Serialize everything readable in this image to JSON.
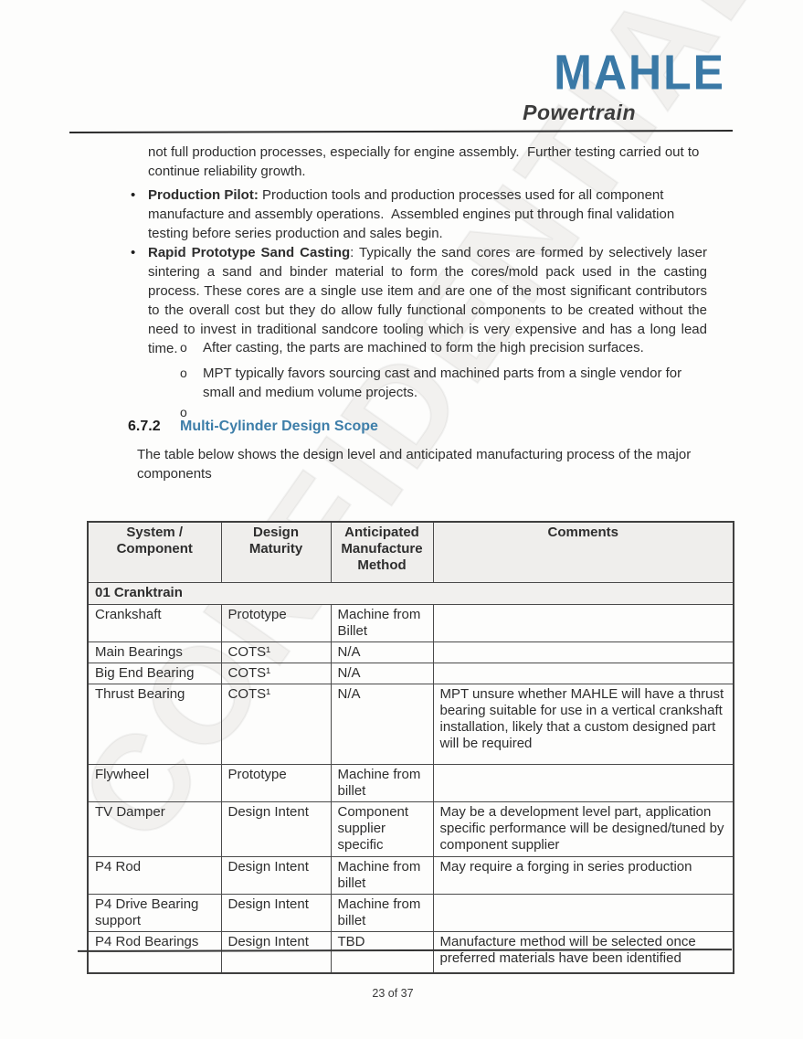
{
  "colors": {
    "logo_blue": "#3a79a6",
    "section_title_blue": "#3d7ea9",
    "table_header_bg": "#efeeec"
  },
  "icons": {
    "bullet": "•",
    "sub_bullet": "o"
  },
  "watermark": "CONFIDENTIAL",
  "header": {
    "logo": "MAHLE",
    "logo_sub": "Powertrain"
  },
  "content": {
    "intro": "not full production processes, especially for engine assembly.  Further testing carried out to continue reliability growth.",
    "bullets": [
      {
        "label": "Production Pilot:",
        "text": " Production tools and production processes used for all component manufacture and assembly operations.  Assembled engines put through final validation testing before series production and sales begin."
      },
      {
        "label": "Rapid Prototype Sand Casting",
        "text": ": Typically the sand cores are formed by selectively laser sintering a sand and binder material to form the cores/mold pack used in the casting process. These cores are a single use item and are one of the most significant contributors to the overall cost but they do allow fully functional components to be created without the need to invest in traditional sandcore tooling which is very expensive and has a long lead time."
      }
    ],
    "sub_bullets": [
      "After casting, the parts are machined to form the high precision surfaces.",
      "MPT typically favors sourcing cast and machined parts from a single vendor for small and medium volume projects.",
      ""
    ],
    "section": {
      "number": "6.7.2",
      "title": "Multi-Cylinder Design Scope"
    },
    "table_intro": "The table below shows the design level and anticipated manufacturing process of the major components"
  },
  "table": {
    "headers": [
      "System / Component",
      "Design Maturity",
      "Anticipated Manufacture Method",
      "Comments"
    ],
    "section_row": "01 Cranktrain",
    "rows": [
      {
        "component": "Crankshaft",
        "maturity": "Prototype",
        "method": "Machine from Billet",
        "comments": ""
      },
      {
        "component": "Main Bearings",
        "maturity": "COTS¹",
        "method": "N/A",
        "comments": ""
      },
      {
        "component": "Big End Bearing",
        "maturity": "COTS¹",
        "method": "N/A",
        "comments": ""
      },
      {
        "component": "Thrust Bearing",
        "maturity": "COTS¹",
        "method": "N/A",
        "comments": "MPT unsure whether MAHLE will have a thrust bearing suitable for use in a vertical crankshaft installation, likely that a custom designed part will be required"
      },
      {
        "component": "Flywheel",
        "maturity": "Prototype",
        "method": "Machine from billet",
        "comments": ""
      },
      {
        "component": "TV Damper",
        "maturity": "Design Intent",
        "method": "Component supplier specific",
        "comments": "May be a development level part, application specific performance will be designed/tuned by component supplier"
      },
      {
        "component": "P4 Rod",
        "maturity": "Design Intent",
        "method": "Machine from billet",
        "comments": "May require a forging in series production"
      },
      {
        "component": "P4 Drive Bearing support",
        "maturity": "Design Intent",
        "method": "Machine from billet",
        "comments": ""
      },
      {
        "component": "P4 Rod Bearings",
        "maturity": "Design Intent",
        "method": "TBD",
        "comments": "Manufacture method will be selected once preferred materials have been identified"
      }
    ]
  },
  "footer": {
    "page_number": "23 of 37"
  }
}
